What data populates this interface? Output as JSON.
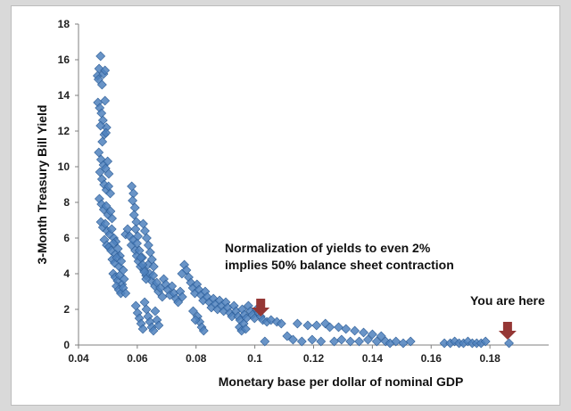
{
  "chart_data": {
    "type": "scatter",
    "title": "",
    "xlabel": "Monetary base per dollar of nominal GDP",
    "ylabel": "3-Month Treasury Bill Yield",
    "xlim": [
      0.04,
      0.2
    ],
    "ylim": [
      0,
      18
    ],
    "x_tick_labels": [
      "0.04",
      "0.06",
      "0.08",
      "0.1",
      "0.12",
      "0.14",
      "0.16",
      "0.18"
    ],
    "y_tick_labels": [
      "0",
      "2",
      "4",
      "6",
      "8",
      "10",
      "12",
      "14",
      "16",
      "18"
    ],
    "grid": false,
    "legend": "none",
    "marker": "diamond",
    "marker_color": "#4f81bd",
    "arrow_color": "#953735",
    "annotations": [
      {
        "line1": "Normalization of yields to even 2%",
        "line2": "implies 50% balance sheet contraction",
        "arrow_x": 0.102,
        "arrow_y": 2.6
      },
      {
        "line1": "You are here",
        "arrow_x": 0.186,
        "arrow_y": 1.3
      }
    ],
    "points": [
      [
        0.0475,
        16.2
      ],
      [
        0.047,
        15.5
      ],
      [
        0.0465,
        15.1
      ],
      [
        0.048,
        14.6
      ],
      [
        0.0468,
        14.9
      ],
      [
        0.0485,
        15.2
      ],
      [
        0.049,
        15.4
      ],
      [
        0.0466,
        13.6
      ],
      [
        0.0472,
        13.3
      ],
      [
        0.0478,
        13.0
      ],
      [
        0.0483,
        12.6
      ],
      [
        0.049,
        13.7
      ],
      [
        0.0495,
        12.2
      ],
      [
        0.0488,
        11.8
      ],
      [
        0.0475,
        12.3
      ],
      [
        0.0481,
        11.4
      ],
      [
        0.0493,
        11.9
      ],
      [
        0.0469,
        10.8
      ],
      [
        0.0477,
        10.4
      ],
      [
        0.0485,
        10.1
      ],
      [
        0.0492,
        9.9
      ],
      [
        0.0499,
        10.3
      ],
      [
        0.0503,
        9.6
      ],
      [
        0.0473,
        9.7
      ],
      [
        0.048,
        9.3
      ],
      [
        0.0487,
        9.0
      ],
      [
        0.0495,
        8.7
      ],
      [
        0.0502,
        8.9
      ],
      [
        0.0508,
        8.5
      ],
      [
        0.0471,
        8.2
      ],
      [
        0.0478,
        7.9
      ],
      [
        0.0486,
        7.6
      ],
      [
        0.0494,
        7.8
      ],
      [
        0.0501,
        7.3
      ],
      [
        0.0509,
        7.5
      ],
      [
        0.0514,
        7.1
      ],
      [
        0.0476,
        6.9
      ],
      [
        0.0483,
        6.6
      ],
      [
        0.0491,
        6.8
      ],
      [
        0.0498,
        6.4
      ],
      [
        0.0506,
        6.2
      ],
      [
        0.0513,
        6.5
      ],
      [
        0.052,
        6.0
      ],
      [
        0.0527,
        5.8
      ],
      [
        0.0488,
        5.9
      ],
      [
        0.0496,
        5.6
      ],
      [
        0.0504,
        5.5
      ],
      [
        0.0511,
        5.3
      ],
      [
        0.0519,
        5.7
      ],
      [
        0.0526,
        5.1
      ],
      [
        0.0534,
        5.4
      ],
      [
        0.0541,
        5.0
      ],
      [
        0.0515,
        4.8
      ],
      [
        0.0523,
        4.6
      ],
      [
        0.053,
        4.9
      ],
      [
        0.0538,
        4.4
      ],
      [
        0.0545,
        4.7
      ],
      [
        0.0552,
        4.2
      ],
      [
        0.0518,
        4.0
      ],
      [
        0.0525,
        3.8
      ],
      [
        0.0533,
        3.6
      ],
      [
        0.054,
        3.9
      ],
      [
        0.0548,
        3.4
      ],
      [
        0.0555,
        3.7
      ],
      [
        0.0529,
        3.3
      ],
      [
        0.0537,
        3.1
      ],
      [
        0.0544,
        2.9
      ],
      [
        0.0552,
        3.2
      ],
      [
        0.056,
        2.9
      ],
      [
        0.056,
        6.2
      ],
      [
        0.0567,
        6.5
      ],
      [
        0.0574,
        6.1
      ],
      [
        0.058,
        5.6
      ],
      [
        0.0586,
        5.9
      ],
      [
        0.0593,
        5.3
      ],
      [
        0.0598,
        5.0
      ],
      [
        0.0604,
        4.7
      ],
      [
        0.0611,
        4.4
      ],
      [
        0.0617,
        4.9
      ],
      [
        0.0623,
        4.2
      ],
      [
        0.063,
        3.9
      ],
      [
        0.0636,
        4.5
      ],
      [
        0.0642,
        4.0
      ],
      [
        0.0648,
        3.6
      ],
      [
        0.0654,
        3.9
      ],
      [
        0.066,
        3.3
      ],
      [
        0.0666,
        3.5
      ],
      [
        0.0672,
        3.0
      ],
      [
        0.0678,
        3.2
      ],
      [
        0.0685,
        2.7
      ],
      [
        0.0581,
        8.9
      ],
      [
        0.0587,
        8.5
      ],
      [
        0.0584,
        8.1
      ],
      [
        0.0592,
        7.7
      ],
      [
        0.0589,
        7.3
      ],
      [
        0.0597,
        6.9
      ],
      [
        0.0594,
        6.5
      ],
      [
        0.0602,
        6.1
      ],
      [
        0.0599,
        5.7
      ],
      [
        0.0607,
        5.3
      ],
      [
        0.0612,
        4.9
      ],
      [
        0.0618,
        4.5
      ],
      [
        0.0624,
        4.1
      ],
      [
        0.063,
        3.7
      ],
      [
        0.062,
        6.8
      ],
      [
        0.0626,
        6.4
      ],
      [
        0.0632,
        6.0
      ],
      [
        0.0638,
        5.6
      ],
      [
        0.0644,
        5.2
      ],
      [
        0.065,
        4.8
      ],
      [
        0.0656,
        4.4
      ],
      [
        0.0595,
        2.2
      ],
      [
        0.0601,
        1.8
      ],
      [
        0.0607,
        1.5
      ],
      [
        0.0613,
        1.2
      ],
      [
        0.0619,
        0.9
      ],
      [
        0.0625,
        2.4
      ],
      [
        0.0631,
        2.0
      ],
      [
        0.0637,
        1.6
      ],
      [
        0.0643,
        1.3
      ],
      [
        0.0649,
        1.0
      ],
      [
        0.0655,
        0.8
      ],
      [
        0.0661,
        1.9
      ],
      [
        0.0667,
        1.4
      ],
      [
        0.0673,
        1.1
      ],
      [
        0.069,
        3.7
      ],
      [
        0.0697,
        3.4
      ],
      [
        0.0704,
        3.1
      ],
      [
        0.0711,
        2.8
      ],
      [
        0.0718,
        3.3
      ],
      [
        0.0725,
        2.9
      ],
      [
        0.0732,
        2.6
      ],
      [
        0.0739,
        2.4
      ],
      [
        0.0746,
        3.0
      ],
      [
        0.0753,
        2.7
      ],
      [
        0.076,
        4.5
      ],
      [
        0.0767,
        4.2
      ],
      [
        0.0752,
        4.0
      ],
      [
        0.0775,
        3.8
      ],
      [
        0.0782,
        3.5
      ],
      [
        0.0789,
        3.2
      ],
      [
        0.0796,
        2.9
      ],
      [
        0.0803,
        3.4
      ],
      [
        0.081,
        3.1
      ],
      [
        0.0817,
        2.8
      ],
      [
        0.0824,
        2.5
      ],
      [
        0.0831,
        3.0
      ],
      [
        0.0838,
        2.7
      ],
      [
        0.0845,
        2.4
      ],
      [
        0.0852,
        2.1
      ],
      [
        0.0859,
        2.6
      ],
      [
        0.0866,
        2.3
      ],
      [
        0.0873,
        2.0
      ],
      [
        0.088,
        2.5
      ],
      [
        0.0887,
        2.2
      ],
      [
        0.0894,
        1.9
      ],
      [
        0.0901,
        2.4
      ],
      [
        0.0908,
        2.1
      ],
      [
        0.0915,
        1.8
      ],
      [
        0.0922,
        1.6
      ],
      [
        0.0805,
        1.6
      ],
      [
        0.0812,
        1.3
      ],
      [
        0.0819,
        1.0
      ],
      [
        0.0826,
        0.8
      ],
      [
        0.079,
        1.9
      ],
      [
        0.0798,
        1.4
      ],
      [
        0.0929,
        2.2
      ],
      [
        0.0936,
        1.9
      ],
      [
        0.0943,
        1.6
      ],
      [
        0.095,
        1.4
      ],
      [
        0.0957,
        2.0
      ],
      [
        0.0964,
        1.7
      ],
      [
        0.0971,
        1.5
      ],
      [
        0.0978,
        2.2
      ],
      [
        0.0985,
        1.9
      ],
      [
        0.0992,
        1.7
      ],
      [
        0.0999,
        1.5
      ],
      [
        0.1006,
        2.0
      ],
      [
        0.1013,
        1.8
      ],
      [
        0.102,
        1.6
      ],
      [
        0.0948,
        1.0
      ],
      [
        0.0955,
        0.8
      ],
      [
        0.0962,
        1.2
      ],
      [
        0.0969,
        0.9
      ],
      [
        0.1027,
        1.4
      ],
      [
        0.1034,
        0.2
      ],
      [
        0.1041,
        1.3
      ],
      [
        0.1055,
        1.4
      ],
      [
        0.1075,
        1.3
      ],
      [
        0.109,
        1.2
      ],
      [
        0.111,
        0.5
      ],
      [
        0.113,
        0.3
      ],
      [
        0.1145,
        1.2
      ],
      [
        0.116,
        0.2
      ],
      [
        0.118,
        1.1
      ],
      [
        0.1195,
        0.3
      ],
      [
        0.121,
        1.1
      ],
      [
        0.1225,
        0.2
      ],
      [
        0.124,
        1.2
      ],
      [
        0.1255,
        1.0
      ],
      [
        0.127,
        0.2
      ],
      [
        0.1285,
        1.0
      ],
      [
        0.1295,
        0.3
      ],
      [
        0.131,
        0.9
      ],
      [
        0.1325,
        0.2
      ],
      [
        0.134,
        0.8
      ],
      [
        0.1355,
        0.2
      ],
      [
        0.137,
        0.7
      ],
      [
        0.1385,
        0.3
      ],
      [
        0.14,
        0.6
      ],
      [
        0.1415,
        0.2
      ],
      [
        0.143,
        0.5
      ],
      [
        0.1445,
        0.2
      ],
      [
        0.146,
        0.1
      ],
      [
        0.148,
        0.2
      ],
      [
        0.1505,
        0.1
      ],
      [
        0.153,
        0.2
      ],
      [
        0.1645,
        0.1
      ],
      [
        0.1665,
        0.1
      ],
      [
        0.168,
        0.2
      ],
      [
        0.1695,
        0.1
      ],
      [
        0.171,
        0.1
      ],
      [
        0.1725,
        0.2
      ],
      [
        0.174,
        0.1
      ],
      [
        0.1755,
        0.1
      ],
      [
        0.177,
        0.1
      ],
      [
        0.1785,
        0.2
      ],
      [
        0.1865,
        0.1
      ]
    ]
  }
}
